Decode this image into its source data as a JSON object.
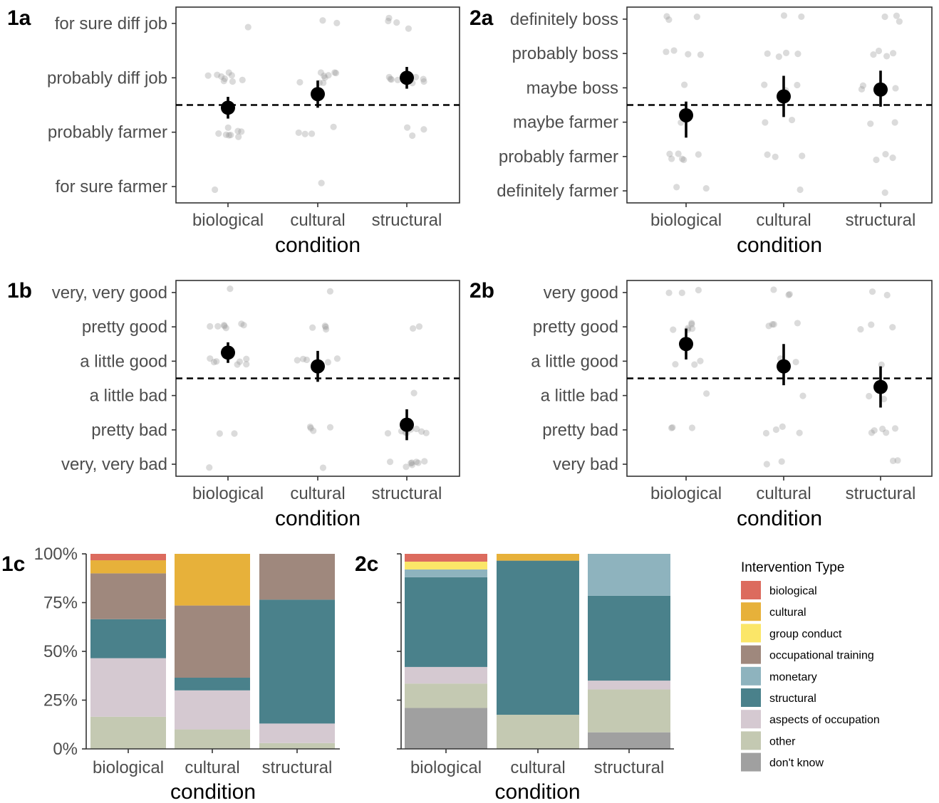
{
  "chart_data": [
    {
      "panel": "1a",
      "type": "scatter",
      "xlabel": "condition",
      "categories": [
        "biological",
        "cultural",
        "structural"
      ],
      "y_levels": [
        "for sure farmer",
        "probably farmer",
        "probably diff job",
        "for sure diff job"
      ],
      "reference_line": 2.5,
      "means": [
        2.45,
        2.7,
        3.0
      ],
      "ci_low": [
        2.25,
        2.45,
        2.8
      ],
      "ci_high": [
        2.65,
        2.95,
        3.2
      ],
      "points": [
        [
          1.0,
          2.0,
          2.0,
          2.0,
          2.0,
          2.0,
          2.0,
          2.0,
          2.0,
          3.0,
          3.0,
          3.0,
          3.0,
          3.0,
          3.0,
          3.0,
          3.0,
          3.0,
          4.0
        ],
        [
          1.0,
          2.0,
          2.0,
          2.0,
          2.0,
          3.0,
          3.0,
          3.0,
          3.0,
          3.0,
          3.0,
          3.0,
          3.0,
          3.0,
          4.0,
          4.0
        ],
        [
          2.0,
          2.0,
          2.0,
          3.0,
          3.0,
          3.0,
          3.0,
          3.0,
          3.0,
          3.0,
          3.0,
          4.0,
          4.0,
          4.0,
          4.0
        ]
      ]
    },
    {
      "panel": "2a",
      "type": "scatter",
      "xlabel": "condition",
      "categories": [
        "biological",
        "cultural",
        "structural"
      ],
      "y_levels": [
        "definitely farmer",
        "probably farmer",
        "maybe farmer",
        "maybe boss",
        "probably boss",
        "definitely boss"
      ],
      "reference_line": 3.5,
      "means": [
        3.2,
        3.75,
        3.95
      ],
      "ci_low": [
        2.55,
        3.15,
        3.45
      ],
      "ci_high": [
        3.6,
        4.35,
        4.5
      ],
      "points": [
        [
          1.0,
          1.0,
          2.0,
          2.0,
          2.0,
          2.0,
          2.0,
          2.0,
          3.0,
          4.0,
          5.0,
          5.0,
          5.0,
          5.0,
          6.0,
          6.0,
          6.0
        ],
        [
          1.0,
          2.0,
          2.0,
          2.0,
          3.0,
          3.0,
          4.0,
          4.0,
          4.0,
          5.0,
          5.0,
          5.0,
          5.0,
          6.0,
          6.0
        ],
        [
          1.0,
          2.0,
          2.0,
          2.0,
          3.0,
          3.0,
          4.0,
          4.0,
          4.0,
          4.0,
          5.0,
          5.0,
          5.0,
          5.0,
          6.0,
          6.0,
          6.0
        ]
      ]
    },
    {
      "panel": "1b",
      "type": "scatter",
      "xlabel": "condition",
      "categories": [
        "biological",
        "cultural",
        "structural"
      ],
      "y_levels": [
        "very, very bad",
        "pretty bad",
        "a little bad",
        "a little good",
        "pretty good",
        "very, very good"
      ],
      "reference_line": 3.5,
      "means": [
        4.25,
        3.85,
        2.15
      ],
      "ci_low": [
        3.95,
        3.4,
        1.7
      ],
      "ci_high": [
        4.55,
        4.3,
        2.6
      ],
      "points": [
        [
          1.0,
          2.0,
          2.0,
          4.0,
          4.0,
          4.0,
          4.0,
          4.0,
          4.0,
          4.0,
          5.0,
          5.0,
          5.0,
          5.0,
          5.0,
          5.0,
          5.0,
          6.0
        ],
        [
          1.0,
          2.0,
          2.0,
          2.0,
          2.0,
          4.0,
          4.0,
          4.0,
          4.0,
          4.0,
          5.0,
          5.0,
          5.0,
          5.0,
          6.0
        ],
        [
          1.0,
          1.0,
          1.0,
          1.0,
          1.0,
          1.0,
          1.0,
          1.0,
          2.0,
          2.0,
          2.0,
          2.0,
          2.0,
          2.0,
          2.0,
          2.0,
          3.0,
          5.0,
          5.0
        ]
      ]
    },
    {
      "panel": "2b",
      "type": "scatter",
      "xlabel": "condition",
      "categories": [
        "biological",
        "cultural",
        "structural"
      ],
      "y_levels": [
        "very bad",
        "pretty bad",
        "a little bad",
        "a little good",
        "pretty good",
        "very good"
      ],
      "reference_line": 3.5,
      "means": [
        4.5,
        3.85,
        3.25
      ],
      "ci_low": [
        4.05,
        3.3,
        2.65
      ],
      "ci_high": [
        4.95,
        4.5,
        3.85
      ],
      "points": [
        [
          2.0,
          2.0,
          2.0,
          3.0,
          4.0,
          4.0,
          4.0,
          5.0,
          5.0,
          5.0,
          5.0,
          5.0,
          5.0,
          6.0,
          6.0,
          6.0
        ],
        [
          1.0,
          1.0,
          2.0,
          2.0,
          2.0,
          2.0,
          3.0,
          4.0,
          4.0,
          5.0,
          5.0,
          5.0,
          5.0,
          6.0,
          6.0,
          6.0
        ],
        [
          1.0,
          1.0,
          2.0,
          2.0,
          2.0,
          2.0,
          2.0,
          3.0,
          3.0,
          4.0,
          5.0,
          5.0,
          5.0,
          6.0,
          6.0
        ]
      ]
    },
    {
      "panel": "1c",
      "type": "bar",
      "stacked": true,
      "xlabel": "condition",
      "categories": [
        "biological",
        "cultural",
        "structural"
      ],
      "y_ticks": [
        "0%",
        "25%",
        "50%",
        "75%",
        "100%"
      ],
      "series": [
        {
          "name": "don't know",
          "values": [
            0,
            0,
            0
          ]
        },
        {
          "name": "other",
          "values": [
            16.5,
            10,
            3
          ]
        },
        {
          "name": "aspects of occupation",
          "values": [
            30,
            20,
            10
          ]
        },
        {
          "name": "structural",
          "values": [
            20,
            6.5,
            63.5
          ]
        },
        {
          "name": "monetary",
          "values": [
            0,
            0,
            0
          ]
        },
        {
          "name": "occupational training",
          "values": [
            23.5,
            37,
            23.5
          ]
        },
        {
          "name": "group conduct",
          "values": [
            0,
            0,
            0
          ]
        },
        {
          "name": "cultural",
          "values": [
            6.7,
            26.5,
            0
          ]
        },
        {
          "name": "biological",
          "values": [
            3.3,
            0,
            0
          ]
        }
      ]
    },
    {
      "panel": "2c",
      "type": "bar",
      "stacked": true,
      "xlabel": "condition",
      "categories": [
        "biological",
        "cultural",
        "structural"
      ],
      "y_ticks": [],
      "series": [
        {
          "name": "don't know",
          "values": [
            21,
            0,
            8.5
          ]
        },
        {
          "name": "other",
          "values": [
            12.5,
            17.5,
            22
          ]
        },
        {
          "name": "aspects of occupation",
          "values": [
            8.5,
            0,
            4.5
          ]
        },
        {
          "name": "structural",
          "values": [
            46,
            79,
            43.5
          ]
        },
        {
          "name": "monetary",
          "values": [
            4,
            0,
            21.5
          ]
        },
        {
          "name": "occupational training",
          "values": [
            0,
            0,
            0
          ]
        },
        {
          "name": "group conduct",
          "values": [
            4,
            0,
            0
          ]
        },
        {
          "name": "cultural",
          "values": [
            0,
            3.5,
            0
          ]
        },
        {
          "name": "biological",
          "values": [
            4,
            0,
            0
          ]
        }
      ]
    }
  ],
  "legend": {
    "title": "Intervention Type",
    "items": [
      {
        "label": "biological",
        "color": "#dc6b5e"
      },
      {
        "label": "cultural",
        "color": "#e7b13a"
      },
      {
        "label": "group conduct",
        "color": "#fbe668"
      },
      {
        "label": "occupational training",
        "color": "#9f887d"
      },
      {
        "label": "monetary",
        "color": "#8eb3be"
      },
      {
        "label": "structural",
        "color": "#4a818b"
      },
      {
        "label": "aspects of occupation",
        "color": "#d5c9d1"
      },
      {
        "label": "other",
        "color": "#c4c9b2"
      },
      {
        "label": "don't know",
        "color": "#a0a0a0"
      }
    ]
  },
  "colors": {
    "point": "#000000",
    "jitter": "#999999",
    "reference": "#000000"
  }
}
